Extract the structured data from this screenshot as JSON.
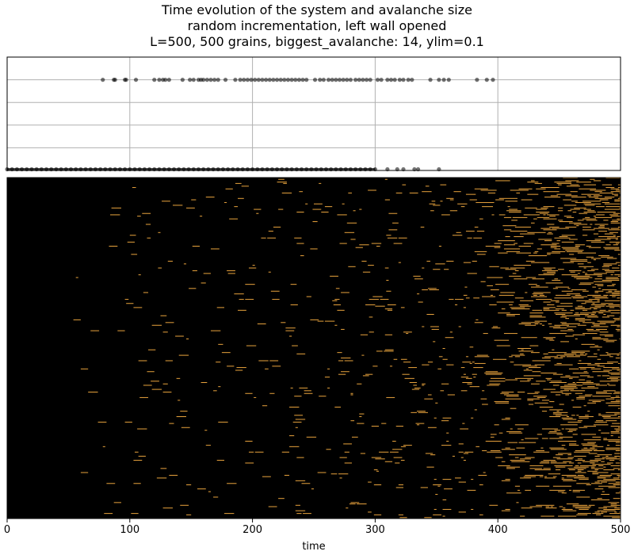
{
  "title_lines": [
    "Time evolution of the system and avalanche size",
    "random incrementation, left wall opened",
    "L=500, 500 grains, biggest_avalanche: 14, ylim=0.1"
  ],
  "colors": {
    "background": "#ffffff",
    "heatmap_background": "#000000",
    "heatmap_active": "#e8a33d",
    "scatter_point": "#000000",
    "grid": "#b0b0b0"
  },
  "chart_data": [
    {
      "type": "scatter",
      "panel": "avalanche-size",
      "title": "",
      "xlabel": "",
      "ylabel": "",
      "xlim": [
        0,
        500
      ],
      "ylim": [
        0,
        0.1
      ],
      "grid": true,
      "y_ticks_visible": false,
      "x_ticks_visible": false,
      "marker_alpha": 0.55,
      "series": [
        {
          "y": 0.08,
          "x": [
            78,
            87,
            88,
            96,
            97,
            105,
            120,
            124,
            127,
            129,
            132,
            143,
            149,
            152,
            156,
            158,
            160,
            163,
            166,
            169,
            172,
            178,
            186,
            190,
            193,
            196,
            199,
            202,
            205,
            208,
            211,
            214,
            217,
            220,
            223,
            226,
            229,
            232,
            235,
            238,
            241,
            244,
            251,
            255,
            258,
            262,
            265,
            268,
            271,
            274,
            277,
            280,
            284,
            287,
            290,
            293,
            296,
            302,
            305,
            310,
            313,
            316,
            320,
            323,
            327,
            330,
            345,
            352,
            356,
            360,
            383,
            391,
            396
          ]
        },
        {
          "y": 0.0,
          "x": [
            0,
            4,
            8,
            12,
            16,
            20,
            24,
            28,
            32,
            36,
            40,
            44,
            48,
            52,
            56,
            60,
            64,
            68,
            72,
            76,
            80,
            84,
            88,
            92,
            96,
            100,
            104,
            108,
            112,
            116,
            120,
            124,
            128,
            132,
            136,
            140,
            144,
            148,
            152,
            156,
            160,
            164,
            168,
            172,
            176,
            180,
            184,
            188,
            192,
            196,
            200,
            204,
            208,
            212,
            216,
            220,
            224,
            228,
            232,
            236,
            240,
            244,
            248,
            252,
            256,
            260,
            264,
            268,
            272,
            276,
            280,
            284,
            288,
            292,
            296,
            300,
            310,
            318,
            323,
            332,
            335,
            352
          ]
        }
      ]
    },
    {
      "type": "heatmap",
      "panel": "system-evolution",
      "title": "",
      "xlabel": "time",
      "ylabel": "",
      "xlim": [
        0,
        500
      ],
      "rows": 500,
      "x_ticks": [
        "0",
        "100",
        "200",
        "300",
        "400",
        "500"
      ],
      "x_tick_values": [
        0,
        100,
        200,
        300,
        400,
        500
      ],
      "y_ticks_visible": false,
      "value_meaning": "black = empty site, orange = toppled/active site",
      "density_profile": [
        0.0,
        0.0,
        0.002,
        0.003,
        0.003,
        0.004,
        0.005,
        0.006,
        0.008,
        0.012,
        0.02,
        0.045,
        0.08
      ]
    }
  ]
}
